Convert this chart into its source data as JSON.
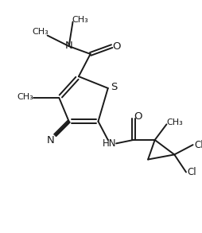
{
  "bg_color": "#ffffff",
  "line_color": "#1a1a1a",
  "line_width": 1.4,
  "font_size": 8.5,
  "figsize": [
    2.55,
    2.93
  ],
  "dpi": 100,
  "xlim": [
    0,
    10
  ],
  "ylim": [
    0,
    11.5
  ]
}
